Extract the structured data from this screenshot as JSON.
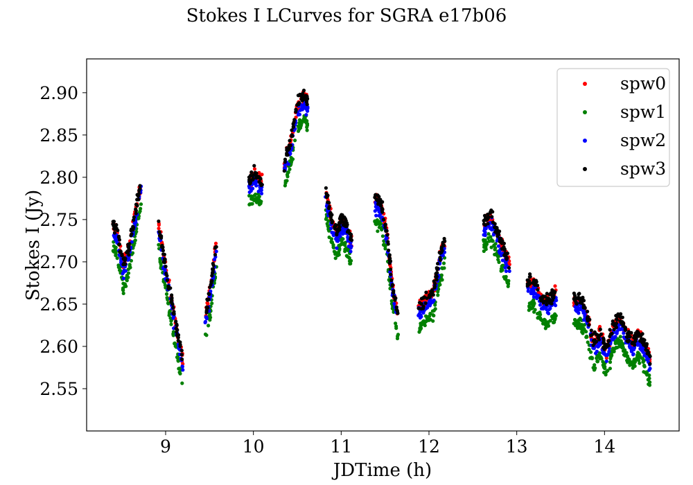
{
  "chart_data": {
    "type": "scatter",
    "title": "Stokes I LCurves for SGRA e17b06",
    "xlabel": "JDTime (h)",
    "ylabel": "Stokes I (Jy)",
    "xlim": [
      8.1,
      14.85
    ],
    "ylim": [
      2.5,
      2.94
    ],
    "xticks": [
      9,
      10,
      11,
      12,
      13,
      14
    ],
    "yticks": [
      2.55,
      2.6,
      2.65,
      2.7,
      2.75,
      2.8,
      2.85,
      2.9
    ],
    "ytick_labels": [
      "2.55",
      "2.60",
      "2.65",
      "2.70",
      "2.75",
      "2.80",
      "2.85",
      "2.90"
    ],
    "legend_position": "upper right",
    "grid": false,
    "segments_time_value": [
      [
        8.4,
        2.74
      ],
      [
        8.45,
        2.73
      ],
      [
        8.52,
        2.69
      ],
      [
        8.58,
        2.71
      ],
      [
        8.65,
        2.75
      ],
      [
        8.72,
        2.79
      ],
      [
        8.92,
        2.74
      ],
      [
        8.98,
        2.7
      ],
      [
        9.05,
        2.66
      ],
      [
        9.12,
        2.62
      ],
      [
        9.2,
        2.575
      ],
      [
        9.45,
        2.63
      ],
      [
        9.52,
        2.67
      ],
      [
        9.58,
        2.72
      ],
      [
        9.95,
        2.79
      ],
      [
        10.02,
        2.8
      ],
      [
        10.1,
        2.79
      ],
      [
        10.35,
        2.81
      ],
      [
        10.42,
        2.835
      ],
      [
        10.5,
        2.88
      ],
      [
        10.58,
        2.89
      ],
      [
        10.62,
        2.885
      ],
      [
        10.82,
        2.78
      ],
      [
        10.88,
        2.75
      ],
      [
        10.95,
        2.73
      ],
      [
        11.0,
        2.745
      ],
      [
        11.05,
        2.74
      ],
      [
        11.12,
        2.72
      ],
      [
        11.38,
        2.77
      ],
      [
        11.45,
        2.765
      ],
      [
        11.52,
        2.73
      ],
      [
        11.58,
        2.67
      ],
      [
        11.65,
        2.63
      ],
      [
        11.88,
        2.64
      ],
      [
        11.95,
        2.65
      ],
      [
        12.05,
        2.66
      ],
      [
        12.12,
        2.7
      ],
      [
        12.18,
        2.72
      ],
      [
        12.62,
        2.74
      ],
      [
        12.7,
        2.75
      ],
      [
        12.78,
        2.73
      ],
      [
        12.85,
        2.71
      ],
      [
        12.92,
        2.69
      ],
      [
        13.12,
        2.67
      ],
      [
        13.2,
        2.67
      ],
      [
        13.3,
        2.65
      ],
      [
        13.38,
        2.65
      ],
      [
        13.45,
        2.66
      ],
      [
        13.65,
        2.65
      ],
      [
        13.72,
        2.65
      ],
      [
        13.78,
        2.64
      ],
      [
        13.88,
        2.6
      ],
      [
        13.95,
        2.61
      ],
      [
        14.02,
        2.59
      ],
      [
        14.1,
        2.62
      ],
      [
        14.18,
        2.63
      ],
      [
        14.25,
        2.61
      ],
      [
        14.32,
        2.6
      ],
      [
        14.38,
        2.61
      ],
      [
        14.45,
        2.6
      ],
      [
        14.52,
        2.58
      ]
    ],
    "series": [
      {
        "name": "spw0",
        "color": "#ff0000",
        "offset": 0.004
      },
      {
        "name": "spw1",
        "color": "#008000",
        "offset": -0.022
      },
      {
        "name": "spw2",
        "color": "#0000ff",
        "offset": -0.004
      },
      {
        "name": "spw3",
        "color": "#000000",
        "offset": 0.006
      }
    ]
  }
}
